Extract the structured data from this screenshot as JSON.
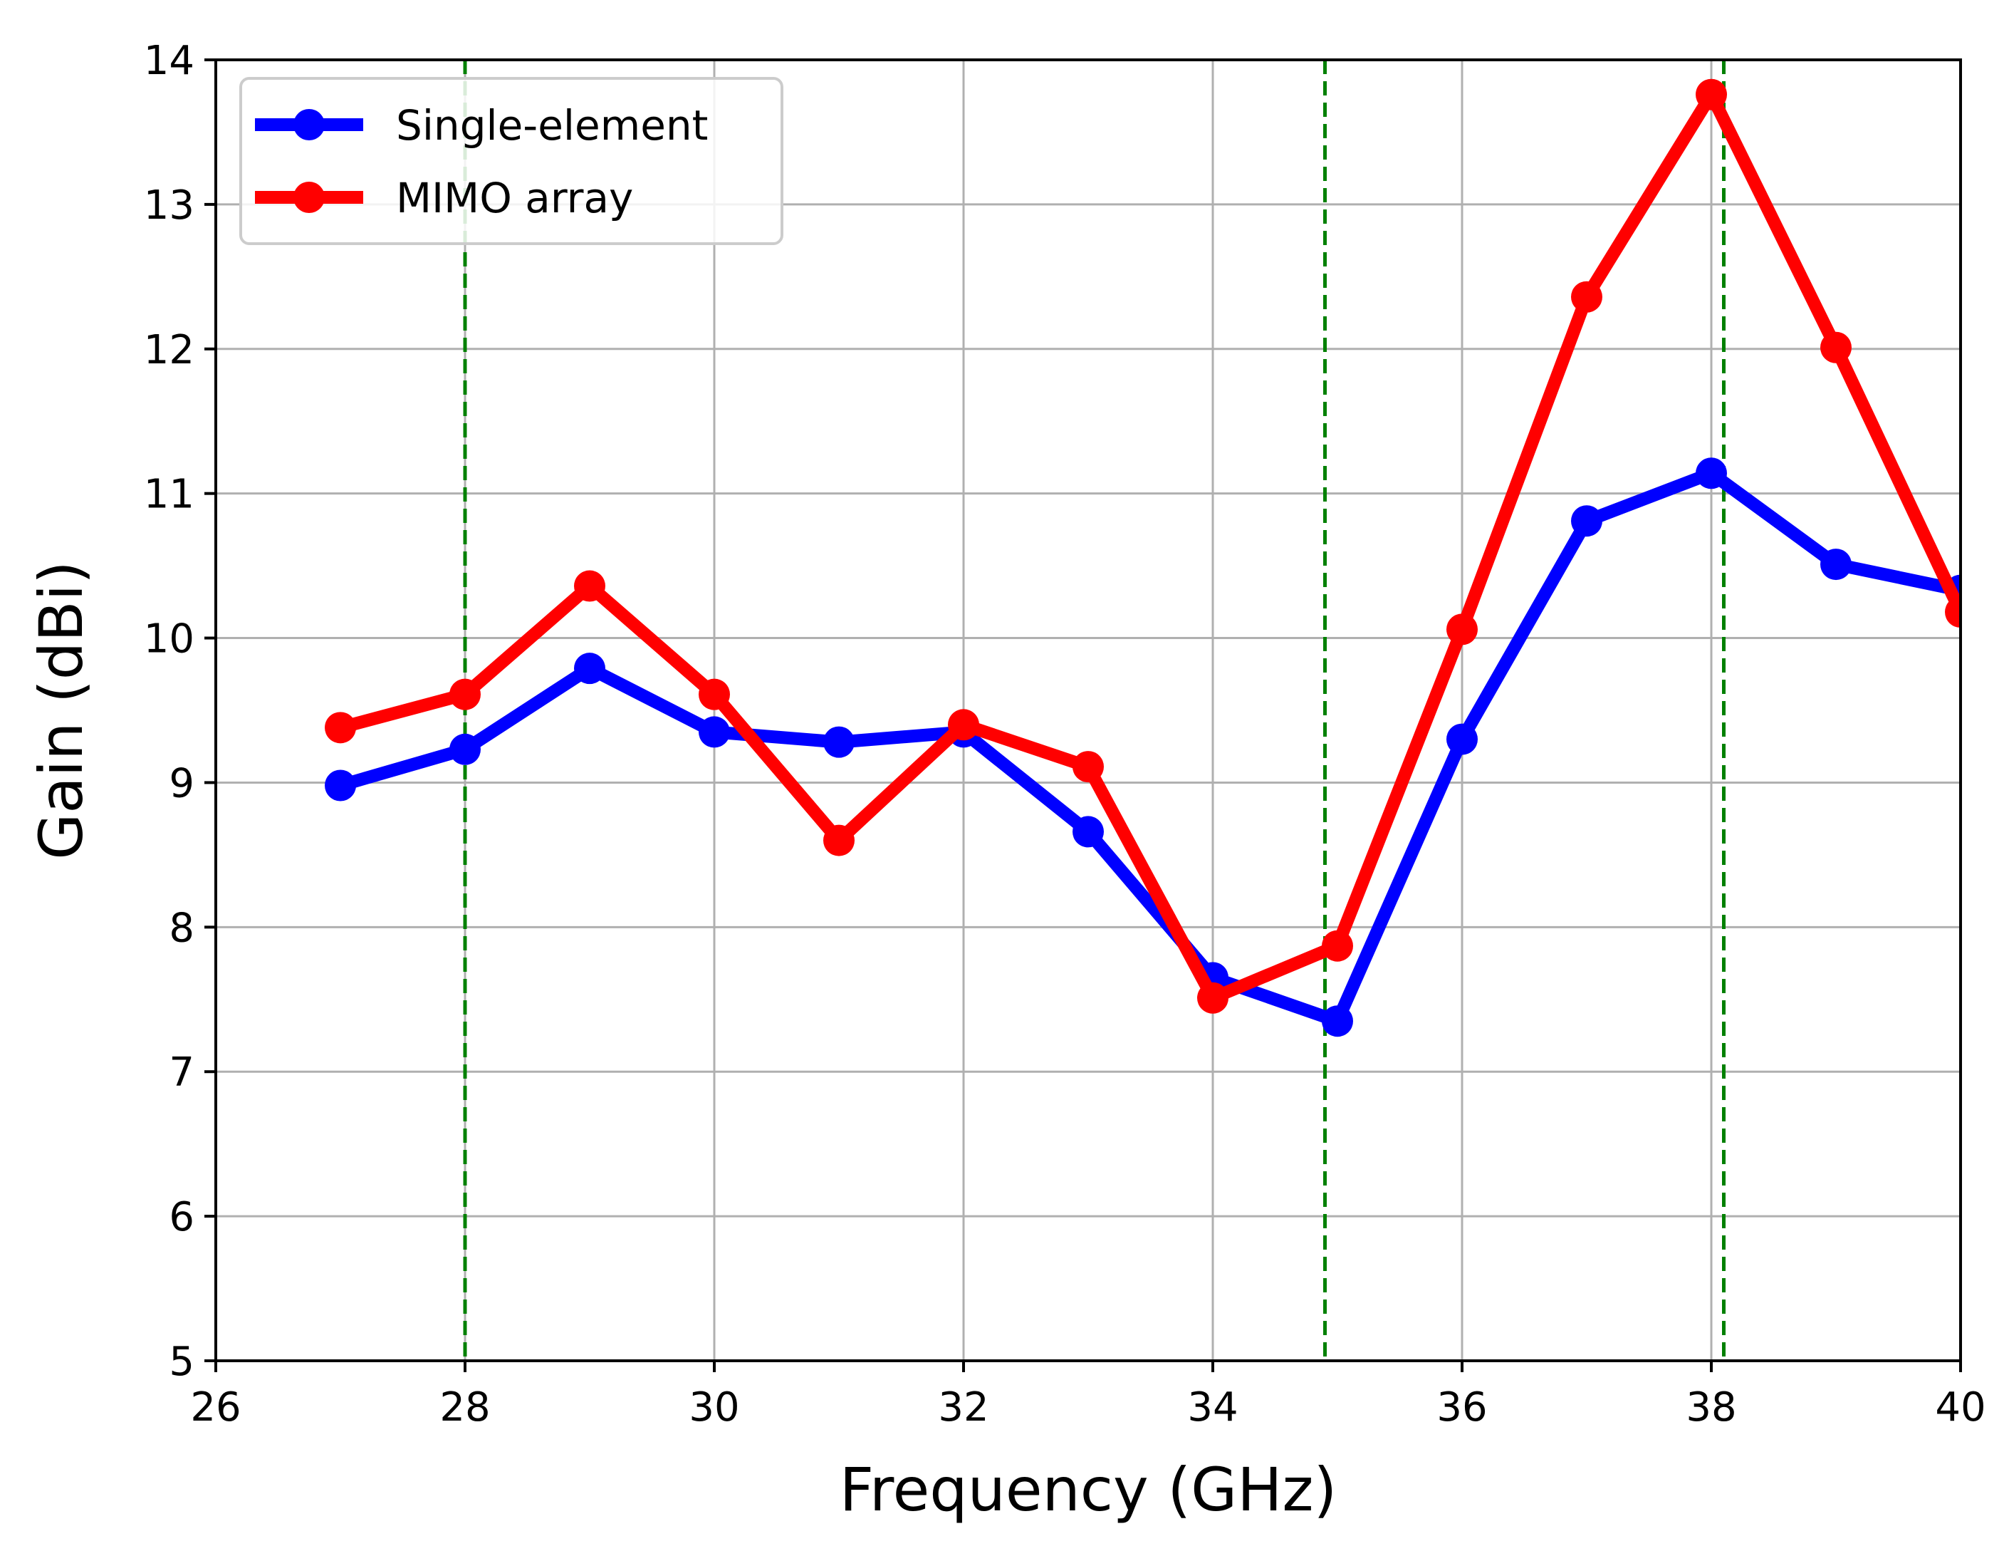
{
  "chart_data": {
    "type": "line",
    "title": "",
    "xlabel": "Frequency (GHz)",
    "ylabel": "Gain (dBi)",
    "xlim": [
      26,
      40
    ],
    "ylim": [
      5,
      14
    ],
    "xticks": [
      26,
      28,
      30,
      32,
      34,
      36,
      38,
      40
    ],
    "yticks": [
      5,
      6,
      7,
      8,
      9,
      10,
      11,
      12,
      13,
      14
    ],
    "grid": true,
    "legend_position": "top-left",
    "x": [
      27,
      28,
      29,
      30,
      31,
      32,
      33,
      34,
      35,
      36,
      37,
      38,
      39,
      40
    ],
    "series": [
      {
        "name": "Single-element",
        "color": "#0000ff",
        "values": [
          8.98,
          9.23,
          9.79,
          9.35,
          9.28,
          9.35,
          8.66,
          7.65,
          7.35,
          9.3,
          10.81,
          11.14,
          10.51,
          10.33
        ]
      },
      {
        "name": "MIMO array",
        "color": "#ff0000",
        "values": [
          9.38,
          9.61,
          10.36,
          9.61,
          8.6,
          9.4,
          9.11,
          7.51,
          7.87,
          10.06,
          12.36,
          13.76,
          12.01,
          10.18
        ]
      }
    ],
    "vertical_markers": {
      "color": "#008000",
      "style": "dashed",
      "x": [
        28.0,
        34.9,
        38.1
      ]
    }
  }
}
